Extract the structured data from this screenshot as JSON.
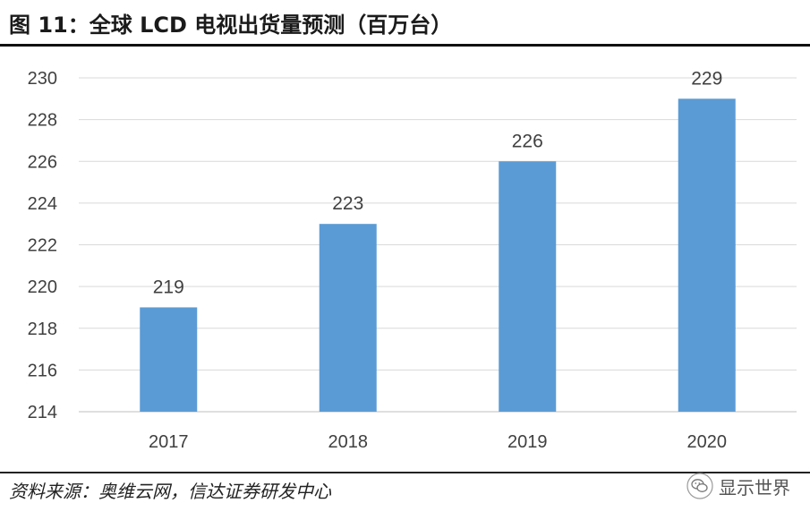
{
  "header": {
    "title": "图 11：全球 LCD 电视出货量预测（百万台）"
  },
  "footer": {
    "source": "资料来源：奥维云网，信达证券研发中心",
    "watermark": "显示世界"
  },
  "icons": {
    "watermark_icon": "wechat-icon"
  },
  "colors": {
    "bar": "#5b9bd5",
    "grid": "#d9d9d9",
    "text": "#404040"
  },
  "chart_data": {
    "type": "bar",
    "categories": [
      "2017",
      "2018",
      "2019",
      "2020"
    ],
    "values": [
      219,
      223,
      226,
      229
    ],
    "ylim": [
      214,
      230
    ],
    "yticks": [
      214,
      216,
      218,
      220,
      222,
      224,
      226,
      228,
      230
    ],
    "grid": true,
    "data_labels": true,
    "xlabel": "",
    "ylabel": ""
  }
}
